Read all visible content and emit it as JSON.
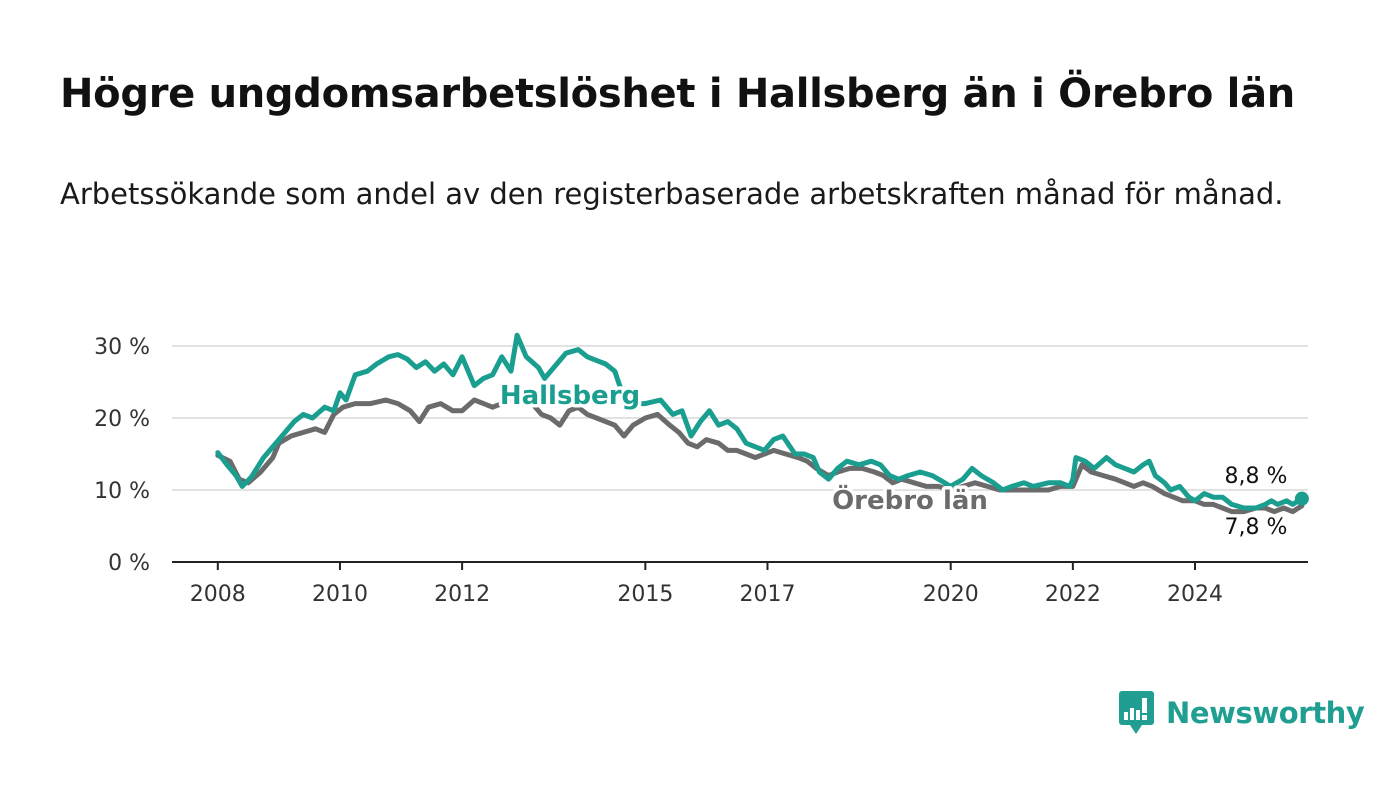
{
  "header": {
    "title": "Högre ungdomsarbetslöshet i Hallsberg än i Örebro län",
    "subtitle": "Arbetssökande som andel av den registerbaserade arbetskraften månad för månad."
  },
  "brand": {
    "name": "Newsworthy",
    "icon": "newsworthy-logo-icon",
    "color": "#1f9e91"
  },
  "chart_data": {
    "type": "line",
    "title": "Högre ungdomsarbetslöshet i Hallsberg än i Örebro län",
    "subtitle": "Arbetssökande som andel av den registerbaserade arbetskraften månad för månad.",
    "xlabel": "",
    "ylabel": "",
    "x_unit": "year",
    "xlim": [
      2007.25,
      2025.85
    ],
    "ylim": [
      0,
      30
    ],
    "x_ticks": [
      2008,
      2010,
      2012,
      2015,
      2017,
      2020,
      2022,
      2024
    ],
    "x_tick_labels": [
      "2008",
      "2010",
      "2012",
      "2015",
      "2017",
      "2020",
      "2022",
      "2024"
    ],
    "y_ticks": [
      0,
      10,
      20,
      30
    ],
    "y_tick_labels": [
      "0 %",
      "10 %",
      "20 %",
      "30 %"
    ],
    "grid": true,
    "legend": "inline labels",
    "series": [
      {
        "name": "Hallsberg",
        "color": "#1a9e8f",
        "end_label": "8,8 %",
        "points": [
          [
            2008.0,
            15.2
          ],
          [
            2008.15,
            13.5
          ],
          [
            2008.3,
            12.0
          ],
          [
            2008.4,
            10.5
          ],
          [
            2008.55,
            11.8
          ],
          [
            2008.75,
            14.5
          ],
          [
            2009.0,
            17.0
          ],
          [
            2009.25,
            19.5
          ],
          [
            2009.4,
            20.5
          ],
          [
            2009.55,
            20.0
          ],
          [
            2009.75,
            21.5
          ],
          [
            2009.9,
            21.0
          ],
          [
            2010.0,
            23.5
          ],
          [
            2010.1,
            22.5
          ],
          [
            2010.25,
            26.0
          ],
          [
            2010.45,
            26.5
          ],
          [
            2010.6,
            27.5
          ],
          [
            2010.8,
            28.5
          ],
          [
            2010.95,
            28.8
          ],
          [
            2011.1,
            28.2
          ],
          [
            2011.25,
            27.0
          ],
          [
            2011.4,
            27.8
          ],
          [
            2011.55,
            26.5
          ],
          [
            2011.7,
            27.5
          ],
          [
            2011.85,
            26.0
          ],
          [
            2012.0,
            28.5
          ],
          [
            2012.2,
            24.5
          ],
          [
            2012.35,
            25.5
          ],
          [
            2012.5,
            26.0
          ],
          [
            2012.65,
            28.5
          ],
          [
            2012.8,
            26.5
          ],
          [
            2012.9,
            31.5
          ],
          [
            2013.05,
            28.5
          ],
          [
            2013.25,
            27.0
          ],
          [
            2013.35,
            25.5
          ],
          [
            2013.5,
            27.0
          ],
          [
            2013.7,
            29.0
          ],
          [
            2013.9,
            29.5
          ],
          [
            2014.05,
            28.5
          ],
          [
            2014.2,
            28.0
          ],
          [
            2014.35,
            27.5
          ],
          [
            2014.5,
            26.5
          ],
          [
            2014.6,
            24.0
          ],
          [
            2014.75,
            22.0
          ],
          [
            2015.0,
            22.0
          ],
          [
            2015.25,
            22.5
          ],
          [
            2015.45,
            20.5
          ],
          [
            2015.6,
            21.0
          ],
          [
            2015.75,
            17.5
          ],
          [
            2015.9,
            19.5
          ],
          [
            2016.05,
            21.0
          ],
          [
            2016.2,
            19.0
          ],
          [
            2016.35,
            19.5
          ],
          [
            2016.5,
            18.5
          ],
          [
            2016.65,
            16.5
          ],
          [
            2016.8,
            16.0
          ],
          [
            2016.95,
            15.5
          ],
          [
            2017.1,
            17.0
          ],
          [
            2017.25,
            17.5
          ],
          [
            2017.45,
            15.0
          ],
          [
            2017.6,
            15.0
          ],
          [
            2017.75,
            14.5
          ],
          [
            2017.85,
            12.5
          ],
          [
            2018.0,
            11.5
          ],
          [
            2018.15,
            13.0
          ],
          [
            2018.3,
            14.0
          ],
          [
            2018.5,
            13.5
          ],
          [
            2018.7,
            14.0
          ],
          [
            2018.85,
            13.5
          ],
          [
            2019.0,
            12.0
          ],
          [
            2019.15,
            11.5
          ],
          [
            2019.3,
            12.0
          ],
          [
            2019.5,
            12.5
          ],
          [
            2019.7,
            12.0
          ],
          [
            2019.8,
            11.5
          ],
          [
            2020.0,
            10.5
          ],
          [
            2020.2,
            11.5
          ],
          [
            2020.35,
            13.0
          ],
          [
            2020.5,
            12.0
          ],
          [
            2020.7,
            11.0
          ],
          [
            2020.85,
            10.0
          ],
          [
            2021.0,
            10.5
          ],
          [
            2021.2,
            11.0
          ],
          [
            2021.35,
            10.5
          ],
          [
            2021.6,
            11.0
          ],
          [
            2021.8,
            11.0
          ],
          [
            2021.95,
            10.5
          ],
          [
            2022.0,
            11.5
          ],
          [
            2022.05,
            14.5
          ],
          [
            2022.2,
            14.0
          ],
          [
            2022.35,
            13.0
          ],
          [
            2022.55,
            14.5
          ],
          [
            2022.7,
            13.5
          ],
          [
            2022.85,
            13.0
          ],
          [
            2023.0,
            12.5
          ],
          [
            2023.15,
            13.5
          ],
          [
            2023.25,
            14.0
          ],
          [
            2023.35,
            12.0
          ],
          [
            2023.5,
            11.0
          ],
          [
            2023.6,
            10.0
          ],
          [
            2023.75,
            10.5
          ],
          [
            2023.9,
            9.0
          ],
          [
            2024.0,
            8.5
          ],
          [
            2024.15,
            9.5
          ],
          [
            2024.3,
            9.0
          ],
          [
            2024.45,
            9.0
          ],
          [
            2024.6,
            8.0
          ],
          [
            2024.8,
            7.5
          ],
          [
            2025.0,
            7.5
          ],
          [
            2025.15,
            8.0
          ],
          [
            2025.25,
            8.5
          ],
          [
            2025.35,
            8.0
          ],
          [
            2025.5,
            8.5
          ],
          [
            2025.6,
            8.0
          ],
          [
            2025.75,
            8.8
          ]
        ]
      },
      {
        "name": "Örebro län",
        "color": "#6b6b6b",
        "end_label": "7,8 %",
        "points": [
          [
            2008.0,
            14.8
          ],
          [
            2008.2,
            14.0
          ],
          [
            2008.35,
            11.5
          ],
          [
            2008.5,
            11.0
          ],
          [
            2008.7,
            12.5
          ],
          [
            2008.9,
            14.5
          ],
          [
            2009.0,
            16.5
          ],
          [
            2009.2,
            17.5
          ],
          [
            2009.4,
            18.0
          ],
          [
            2009.6,
            18.5
          ],
          [
            2009.75,
            18.0
          ],
          [
            2009.9,
            20.5
          ],
          [
            2010.05,
            21.5
          ],
          [
            2010.25,
            22.0
          ],
          [
            2010.5,
            22.0
          ],
          [
            2010.75,
            22.5
          ],
          [
            2010.95,
            22.0
          ],
          [
            2011.15,
            21.0
          ],
          [
            2011.3,
            19.5
          ],
          [
            2011.45,
            21.5
          ],
          [
            2011.65,
            22.0
          ],
          [
            2011.85,
            21.0
          ],
          [
            2012.0,
            21.0
          ],
          [
            2012.2,
            22.5
          ],
          [
            2012.35,
            22.0
          ],
          [
            2012.5,
            21.5
          ],
          [
            2012.65,
            22.0
          ],
          [
            2012.8,
            22.5
          ],
          [
            2012.95,
            23.0
          ],
          [
            2013.15,
            22.0
          ],
          [
            2013.3,
            20.5
          ],
          [
            2013.45,
            20.0
          ],
          [
            2013.6,
            19.0
          ],
          [
            2013.75,
            21.0
          ],
          [
            2013.9,
            21.5
          ],
          [
            2014.05,
            20.5
          ],
          [
            2014.2,
            20.0
          ],
          [
            2014.35,
            19.5
          ],
          [
            2014.5,
            19.0
          ],
          [
            2014.65,
            17.5
          ],
          [
            2014.8,
            19.0
          ],
          [
            2015.0,
            20.0
          ],
          [
            2015.2,
            20.5
          ],
          [
            2015.4,
            19.0
          ],
          [
            2015.55,
            18.0
          ],
          [
            2015.7,
            16.5
          ],
          [
            2015.85,
            16.0
          ],
          [
            2016.0,
            17.0
          ],
          [
            2016.2,
            16.5
          ],
          [
            2016.35,
            15.5
          ],
          [
            2016.5,
            15.5
          ],
          [
            2016.65,
            15.0
          ],
          [
            2016.8,
            14.5
          ],
          [
            2016.95,
            15.0
          ],
          [
            2017.1,
            15.5
          ],
          [
            2017.3,
            15.0
          ],
          [
            2017.5,
            14.5
          ],
          [
            2017.65,
            14.0
          ],
          [
            2017.8,
            13.0
          ],
          [
            2018.0,
            12.0
          ],
          [
            2018.15,
            12.5
          ],
          [
            2018.35,
            13.0
          ],
          [
            2018.55,
            13.0
          ],
          [
            2018.75,
            12.5
          ],
          [
            2018.9,
            12.0
          ],
          [
            2019.05,
            11.0
          ],
          [
            2019.2,
            11.5
          ],
          [
            2019.4,
            11.0
          ],
          [
            2019.6,
            10.5
          ],
          [
            2019.8,
            10.5
          ],
          [
            2020.0,
            10.0
          ],
          [
            2020.2,
            10.5
          ],
          [
            2020.4,
            11.0
          ],
          [
            2020.6,
            10.5
          ],
          [
            2020.8,
            10.0
          ],
          [
            2021.0,
            10.0
          ],
          [
            2021.2,
            10.0
          ],
          [
            2021.4,
            10.0
          ],
          [
            2021.6,
            10.0
          ],
          [
            2021.8,
            10.5
          ],
          [
            2022.0,
            10.5
          ],
          [
            2022.15,
            13.5
          ],
          [
            2022.3,
            12.5
          ],
          [
            2022.5,
            12.0
          ],
          [
            2022.7,
            11.5
          ],
          [
            2022.85,
            11.0
          ],
          [
            2023.0,
            10.5
          ],
          [
            2023.15,
            11.0
          ],
          [
            2023.3,
            10.5
          ],
          [
            2023.5,
            9.5
          ],
          [
            2023.65,
            9.0
          ],
          [
            2023.8,
            8.5
          ],
          [
            2024.0,
            8.5
          ],
          [
            2024.15,
            8.0
          ],
          [
            2024.3,
            8.0
          ],
          [
            2024.45,
            7.5
          ],
          [
            2024.6,
            7.0
          ],
          [
            2024.8,
            7.0
          ],
          [
            2025.0,
            7.5
          ],
          [
            2025.15,
            7.5
          ],
          [
            2025.3,
            7.0
          ],
          [
            2025.45,
            7.5
          ],
          [
            2025.6,
            7.0
          ],
          [
            2025.75,
            7.8
          ]
        ]
      }
    ]
  }
}
